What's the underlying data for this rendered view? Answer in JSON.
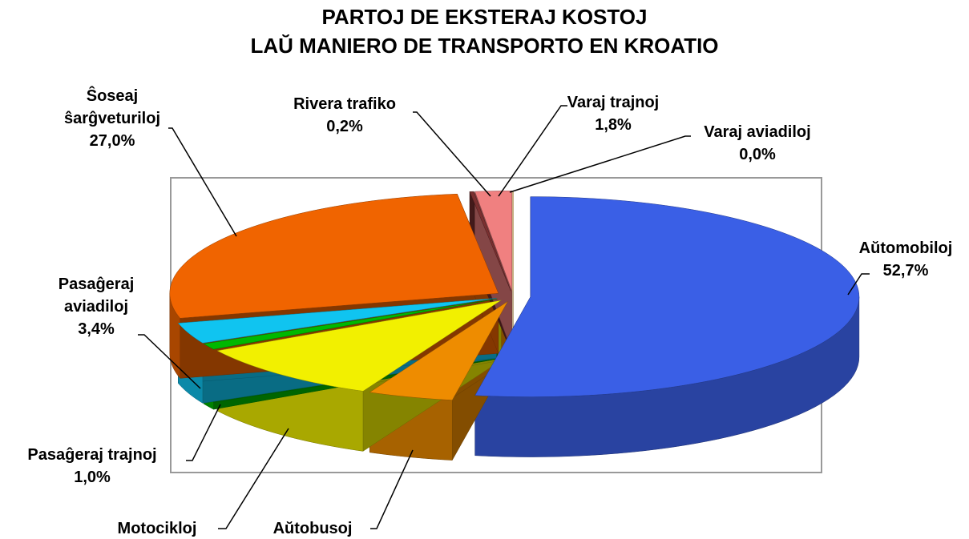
{
  "chart_data": {
    "type": "pie3d",
    "title": [
      "PARTOJ DE EKSTERAJ KOSTOJ",
      "LAŬ MANIERO DE TRANSPORTO EN KROATIO"
    ],
    "categories": [
      "Aŭtomobiloj",
      "Aŭtobusoj",
      "Motocikloj",
      "Pasaĝeraj trajnoj",
      "Pasaĝeraj aviadiloj",
      "Ŝoseaj ŝarĝveturiloj",
      "Rivera trafiko",
      "Varaj trajnoj",
      "Varaj aviadiloj"
    ],
    "values": [
      52.7,
      4.2,
      9.7,
      1.0,
      3.4,
      27.0,
      0.2,
      1.8,
      0.0
    ],
    "value_labels": [
      "52,7%",
      "4,2%",
      "9,7%",
      "1,0%",
      "3,4%",
      "27,0%",
      "0,2%",
      "1,8%",
      "0,0%"
    ],
    "colors": [
      "#3a5fe6",
      "#ee8c00",
      "#f2f000",
      "#00b800",
      "#10c4f0",
      "#f06400",
      "#7a3030",
      "#f08080",
      "#f0a000"
    ]
  }
}
